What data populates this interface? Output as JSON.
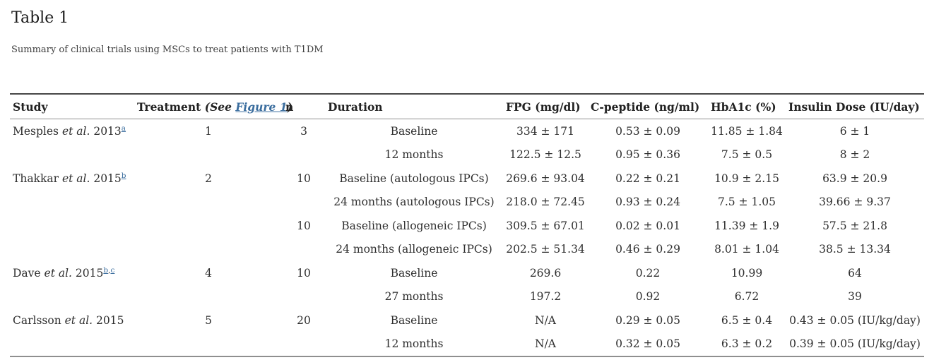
{
  "page": {
    "title": "Table 1",
    "caption": "Summary of clinical trials using MSCs to treat patients with T1DM"
  },
  "colors": {
    "link": "#3a6d9e",
    "text": "#2e2e2e",
    "rule_top": "#474747",
    "rule_gray": "#8f8f8f"
  },
  "table": {
    "headers": {
      "study": "Study",
      "treatment_prefix": "Treatment ",
      "treatment_see": "(See ",
      "treatment_link": "Figure 1",
      "treatment_close": ")",
      "n": "n",
      "duration": "Duration",
      "fpg": "FPG (mg/dl)",
      "c_peptide": "C-peptide (ng/ml)",
      "hba1c": "HbA1c (%)",
      "insulin_dose": "Insulin Dose (IU/day)"
    },
    "rows": [
      {
        "study": {
          "before": "Mesples ",
          "etal": "et al.",
          "after": " 2013",
          "footnotes": [
            "a"
          ]
        },
        "treatment": "1",
        "n": "3",
        "duration": "Baseline",
        "fpg": "334 ± 171",
        "c_peptide": "0.53 ± 0.09",
        "hba1c": "11.85 ± 1.84",
        "insulin_dose": "6 ± 1"
      },
      {
        "study": null,
        "treatment": "",
        "n": "",
        "duration": "12 months",
        "fpg": "122.5 ± 12.5",
        "c_peptide": "0.95 ± 0.36",
        "hba1c": "7.5 ± 0.5",
        "insulin_dose": "8 ± 2"
      },
      {
        "study": {
          "before": "Thakkar ",
          "etal": "et al.",
          "after": " 2015",
          "footnotes": [
            "b"
          ]
        },
        "treatment": "2",
        "n": "10",
        "duration": "Baseline (autologous IPCs)",
        "fpg": "269.6 ± 93.04",
        "c_peptide": "0.22 ± 0.21",
        "hba1c": "10.9 ± 2.15",
        "insulin_dose": "63.9 ± 20.9"
      },
      {
        "study": null,
        "treatment": "",
        "n": "",
        "duration": "24 months (autologous IPCs)",
        "fpg": "218.0 ± 72.45",
        "c_peptide": "0.93 ± 0.24",
        "hba1c": "7.5 ± 1.05",
        "insulin_dose": "39.66 ± 9.37"
      },
      {
        "study": null,
        "treatment": "",
        "n": "10",
        "duration": "Baseline (allogeneic IPCs)",
        "fpg": "309.5 ± 67.01",
        "c_peptide": "0.02 ± 0.01",
        "hba1c": "11.39 ± 1.9",
        "insulin_dose": "57.5 ± 21.8"
      },
      {
        "study": null,
        "treatment": "",
        "n": "",
        "duration": "24 months (allogeneic IPCs)",
        "fpg": "202.5 ± 51.34",
        "c_peptide": "0.46 ± 0.29",
        "hba1c": "8.01 ± 1.04",
        "insulin_dose": "38.5 ± 13.34"
      },
      {
        "study": {
          "before": "Dave ",
          "etal": "et al.",
          "after": " 2015",
          "footnotes": [
            "b",
            "c"
          ]
        },
        "treatment": "4",
        "n": "10",
        "duration": "Baseline",
        "fpg": "269.6",
        "c_peptide": "0.22",
        "hba1c": "10.99",
        "insulin_dose": "64"
      },
      {
        "study": null,
        "treatment": "",
        "n": "",
        "duration": "27 months",
        "fpg": "197.2",
        "c_peptide": "0.92",
        "hba1c": "6.72",
        "insulin_dose": "39"
      },
      {
        "study": {
          "before": "Carlsson ",
          "etal": "et al.",
          "after": " 2015",
          "footnotes": []
        },
        "treatment": "5",
        "n": "20",
        "duration": "Baseline",
        "fpg": "N/A",
        "c_peptide": "0.29 ± 0.05",
        "hba1c": "6.5 ± 0.4",
        "insulin_dose": "0.43 ± 0.05 (IU/kg/day)"
      },
      {
        "study": null,
        "treatment": "",
        "n": "",
        "duration": "12 months",
        "fpg": "N/A",
        "c_peptide": "0.32 ± 0.05",
        "hba1c": "6.3 ± 0.2",
        "insulin_dose": "0.39 ± 0.05 (IU/kg/day)"
      }
    ]
  }
}
